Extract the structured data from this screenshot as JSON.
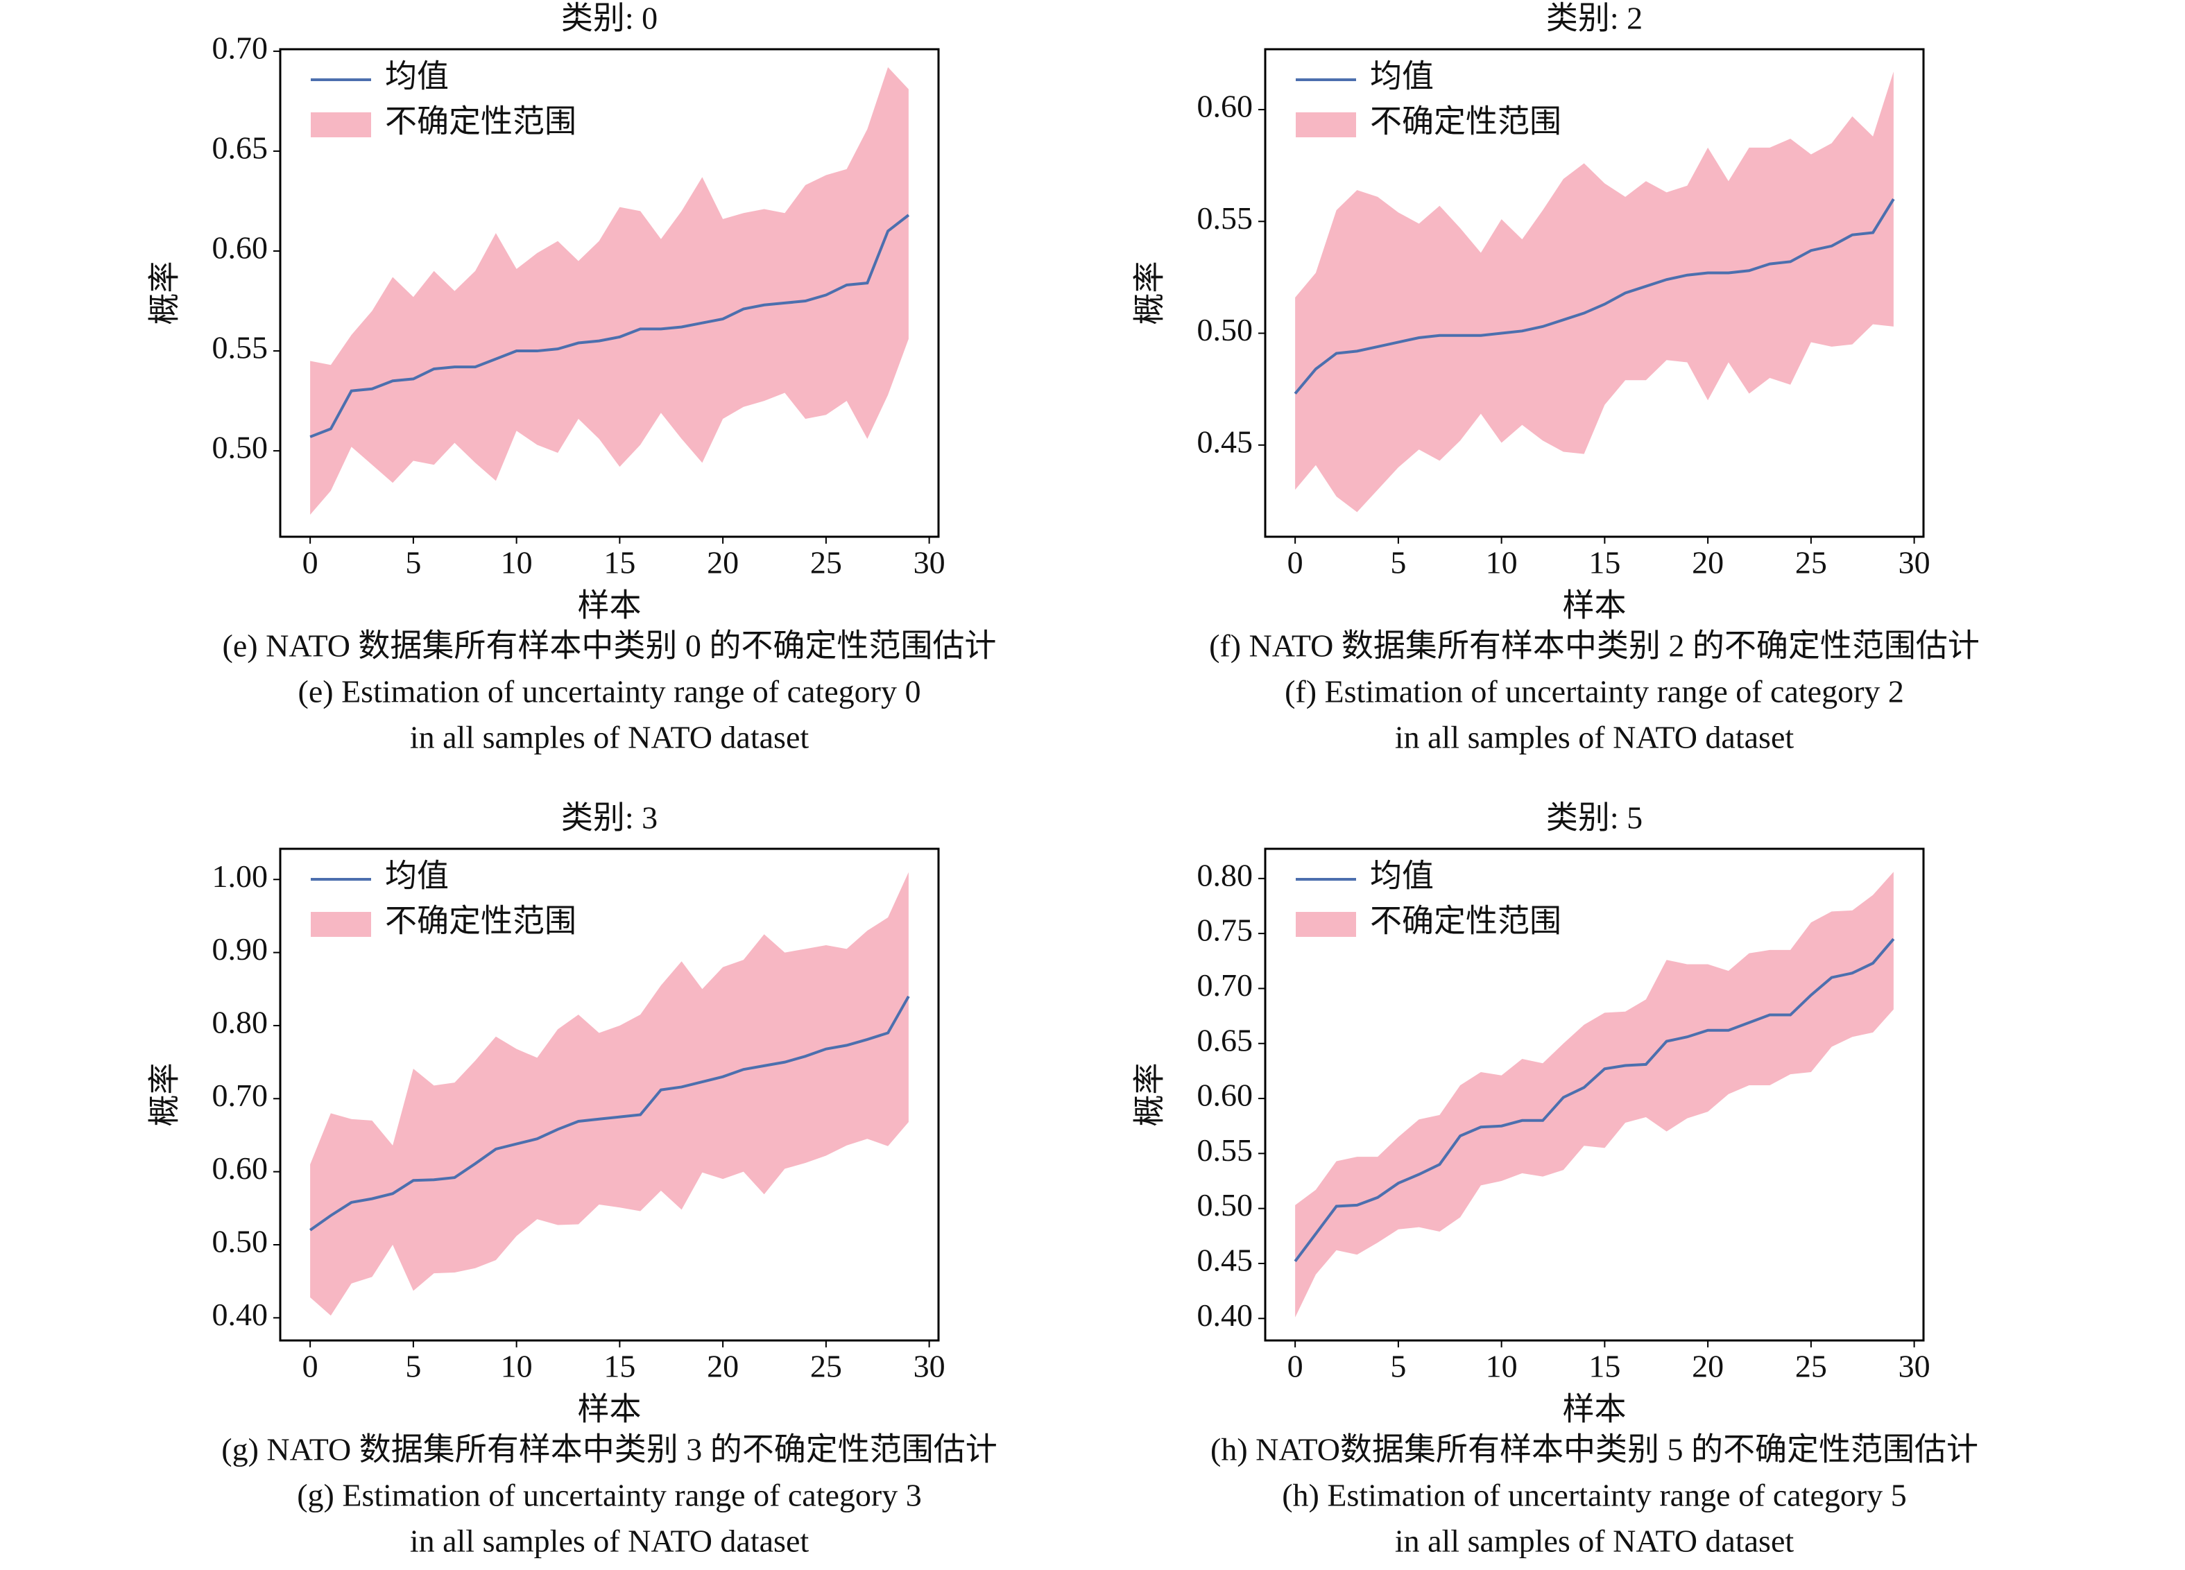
{
  "chart_data": [
    {
      "type": "line",
      "title": "类别: 0",
      "xlabel": "样本",
      "ylabel": "概率",
      "x": [
        0,
        1,
        2,
        3,
        4,
        5,
        6,
        7,
        8,
        9,
        10,
        11,
        12,
        13,
        14,
        15,
        16,
        17,
        18,
        19,
        20,
        21,
        22,
        23,
        24,
        25,
        26,
        27,
        28,
        29
      ],
      "series": [
        {
          "name": "均值",
          "color": "#4c6fae",
          "values": [
            0.507,
            0.511,
            0.53,
            0.531,
            0.535,
            0.536,
            0.541,
            0.542,
            0.542,
            0.546,
            0.55,
            0.55,
            0.551,
            0.554,
            0.555,
            0.557,
            0.561,
            0.561,
            0.562,
            0.564,
            0.566,
            0.571,
            0.573,
            0.574,
            0.575,
            0.578,
            0.583,
            0.584,
            0.61,
            0.618
          ]
        }
      ],
      "band": {
        "name": "不确定性范围",
        "color": "#f7b7c3",
        "upper": [
          0.545,
          0.543,
          0.558,
          0.57,
          0.587,
          0.577,
          0.59,
          0.58,
          0.59,
          0.609,
          0.591,
          0.599,
          0.605,
          0.595,
          0.605,
          0.622,
          0.62,
          0.606,
          0.62,
          0.637,
          0.616,
          0.619,
          0.621,
          0.619,
          0.633,
          0.638,
          0.641,
          0.661,
          0.692,
          0.681
        ],
        "lower": [
          0.468,
          0.48,
          0.502,
          0.493,
          0.484,
          0.495,
          0.493,
          0.504,
          0.494,
          0.485,
          0.51,
          0.503,
          0.499,
          0.516,
          0.506,
          0.492,
          0.503,
          0.519,
          0.506,
          0.494,
          0.516,
          0.522,
          0.525,
          0.529,
          0.516,
          0.518,
          0.525,
          0.506,
          0.528,
          0.556
        ]
      },
      "xlim": [
        -1.45,
        30.45
      ],
      "xticks": [
        0,
        5,
        10,
        15,
        20,
        25,
        30
      ],
      "ylim": [
        0.457,
        0.701
      ],
      "yticks": [
        {
          "value": 0.5,
          "label": "0.50"
        },
        {
          "value": 0.55,
          "label": "0.55"
        },
        {
          "value": 0.6,
          "label": "0.60"
        },
        {
          "value": 0.65,
          "label": "0.65"
        },
        {
          "value": 0.7,
          "label": "0.70"
        }
      ],
      "legend": "upper left",
      "caption": [
        "(e) NATO 数据集所有样本中类别 0 的不确定性范围估计",
        "(e) Estimation of uncertainty range of category 0",
        "in all samples of NATO dataset"
      ]
    },
    {
      "type": "line",
      "title": "类别: 2",
      "xlabel": "样本",
      "ylabel": "概率",
      "x": [
        0,
        1,
        2,
        3,
        4,
        5,
        6,
        7,
        8,
        9,
        10,
        11,
        12,
        13,
        14,
        15,
        16,
        17,
        18,
        19,
        20,
        21,
        22,
        23,
        24,
        25,
        26,
        27,
        28,
        29
      ],
      "series": [
        {
          "name": "均值",
          "color": "#4c6fae",
          "values": [
            0.473,
            0.484,
            0.491,
            0.492,
            0.494,
            0.496,
            0.498,
            0.499,
            0.499,
            0.499,
            0.5,
            0.501,
            0.503,
            0.506,
            0.509,
            0.513,
            0.518,
            0.521,
            0.524,
            0.526,
            0.527,
            0.527,
            0.528,
            0.531,
            0.532,
            0.537,
            0.539,
            0.544,
            0.545,
            0.56
          ]
        }
      ],
      "band": {
        "name": "不确定性范围",
        "color": "#f7b7c3",
        "upper": [
          0.516,
          0.527,
          0.555,
          0.564,
          0.561,
          0.554,
          0.549,
          0.557,
          0.547,
          0.536,
          0.551,
          0.542,
          0.555,
          0.569,
          0.576,
          0.567,
          0.561,
          0.568,
          0.563,
          0.566,
          0.583,
          0.568,
          0.583,
          0.583,
          0.587,
          0.58,
          0.585,
          0.597,
          0.588,
          0.617
        ],
        "lower": [
          0.43,
          0.441,
          0.427,
          0.42,
          0.43,
          0.44,
          0.448,
          0.443,
          0.452,
          0.464,
          0.451,
          0.459,
          0.452,
          0.447,
          0.446,
          0.468,
          0.479,
          0.479,
          0.488,
          0.487,
          0.47,
          0.487,
          0.473,
          0.48,
          0.477,
          0.496,
          0.494,
          0.495,
          0.504,
          0.503
        ]
      },
      "xlim": [
        -1.45,
        30.45
      ],
      "xticks": [
        0,
        5,
        10,
        15,
        20,
        25,
        30
      ],
      "ylim": [
        0.409,
        0.627
      ],
      "yticks": [
        {
          "value": 0.45,
          "label": "0.45"
        },
        {
          "value": 0.5,
          "label": "0.50"
        },
        {
          "value": 0.55,
          "label": "0.55"
        },
        {
          "value": 0.6,
          "label": "0.60"
        }
      ],
      "legend": "upper left",
      "caption": [
        "(f) NATO 数据集所有样本中类别 2 的不确定性范围估计",
        "(f) Estimation of uncertainty range of category 2",
        "in all samples of NATO dataset"
      ]
    },
    {
      "type": "line",
      "title": "类别: 3",
      "xlabel": "样本",
      "ylabel": "概率",
      "x": [
        0,
        1,
        2,
        3,
        4,
        5,
        6,
        7,
        8,
        9,
        10,
        11,
        12,
        13,
        14,
        15,
        16,
        17,
        18,
        19,
        20,
        21,
        22,
        23,
        24,
        25,
        26,
        27,
        28,
        29
      ],
      "series": [
        {
          "name": "均值",
          "color": "#4c6fae",
          "values": [
            0.52,
            0.54,
            0.558,
            0.563,
            0.57,
            0.588,
            0.589,
            0.592,
            0.611,
            0.631,
            0.638,
            0.645,
            0.658,
            0.669,
            0.672,
            0.675,
            0.678,
            0.712,
            0.716,
            0.723,
            0.73,
            0.74,
            0.745,
            0.75,
            0.758,
            0.768,
            0.773,
            0.781,
            0.79,
            0.84
          ]
        }
      ],
      "band": {
        "name": "不确定性范围",
        "color": "#f7b7c3",
        "upper": [
          0.61,
          0.68,
          0.672,
          0.67,
          0.636,
          0.741,
          0.718,
          0.722,
          0.752,
          0.785,
          0.768,
          0.756,
          0.795,
          0.815,
          0.79,
          0.8,
          0.815,
          0.855,
          0.888,
          0.85,
          0.88,
          0.89,
          0.925,
          0.9,
          0.905,
          0.91,
          0.905,
          0.93,
          0.948,
          1.01
        ],
        "lower": [
          0.428,
          0.403,
          0.447,
          0.456,
          0.5,
          0.437,
          0.461,
          0.462,
          0.468,
          0.479,
          0.512,
          0.535,
          0.527,
          0.528,
          0.555,
          0.551,
          0.546,
          0.574,
          0.548,
          0.599,
          0.59,
          0.6,
          0.569,
          0.604,
          0.612,
          0.622,
          0.636,
          0.645,
          0.635,
          0.668
        ]
      },
      "xlim": [
        -1.45,
        30.45
      ],
      "xticks": [
        0,
        5,
        10,
        15,
        20,
        25,
        30
      ],
      "ylim": [
        0.369,
        1.042
      ],
      "yticks": [
        {
          "value": 0.4,
          "label": "0.40"
        },
        {
          "value": 0.5,
          "label": "0.50"
        },
        {
          "value": 0.6,
          "label": "0.60"
        },
        {
          "value": 0.7,
          "label": "0.70"
        },
        {
          "value": 0.8,
          "label": "0.80"
        },
        {
          "value": 0.9,
          "label": "0.90"
        },
        {
          "value": 1.0,
          "label": "1.00"
        }
      ],
      "legend": "upper left",
      "caption": [
        "(g) NATO 数据集所有样本中类别 3 的不确定性范围估计",
        "(g) Estimation of uncertainty range of category 3",
        "in all samples of NATO dataset"
      ]
    },
    {
      "type": "line",
      "title": "类别: 5",
      "xlabel": "样本",
      "ylabel": "概率",
      "x": [
        0,
        1,
        2,
        3,
        4,
        5,
        6,
        7,
        8,
        9,
        10,
        11,
        12,
        13,
        14,
        15,
        16,
        17,
        18,
        19,
        20,
        21,
        22,
        23,
        24,
        25,
        26,
        27,
        28,
        29
      ],
      "series": [
        {
          "name": "均值",
          "color": "#4c6fae",
          "values": [
            0.452,
            0.477,
            0.502,
            0.503,
            0.51,
            0.523,
            0.531,
            0.54,
            0.566,
            0.574,
            0.575,
            0.58,
            0.58,
            0.601,
            0.61,
            0.627,
            0.63,
            0.631,
            0.652,
            0.656,
            0.662,
            0.662,
            0.669,
            0.676,
            0.676,
            0.694,
            0.71,
            0.714,
            0.723,
            0.745
          ]
        }
      ],
      "band": {
        "name": "不确定性范围",
        "color": "#f7b7c3",
        "upper": [
          0.503,
          0.517,
          0.543,
          0.547,
          0.547,
          0.565,
          0.581,
          0.585,
          0.612,
          0.624,
          0.621,
          0.636,
          0.632,
          0.65,
          0.667,
          0.678,
          0.679,
          0.69,
          0.726,
          0.722,
          0.722,
          0.716,
          0.732,
          0.735,
          0.735,
          0.76,
          0.77,
          0.771,
          0.785,
          0.806
        ],
        "lower": [
          0.401,
          0.44,
          0.462,
          0.458,
          0.469,
          0.481,
          0.483,
          0.479,
          0.492,
          0.521,
          0.525,
          0.532,
          0.529,
          0.535,
          0.557,
          0.555,
          0.578,
          0.583,
          0.57,
          0.582,
          0.588,
          0.604,
          0.612,
          0.612,
          0.622,
          0.624,
          0.647,
          0.656,
          0.66,
          0.681
        ]
      },
      "xlim": [
        -1.45,
        30.45
      ],
      "xticks": [
        0,
        5,
        10,
        15,
        20,
        25,
        30
      ],
      "ylim": [
        0.38,
        0.827
      ],
      "yticks": [
        {
          "value": 0.4,
          "label": "0.40"
        },
        {
          "value": 0.45,
          "label": "0.45"
        },
        {
          "value": 0.5,
          "label": "0.50"
        },
        {
          "value": 0.55,
          "label": "0.55"
        },
        {
          "value": 0.6,
          "label": "0.60"
        },
        {
          "value": 0.65,
          "label": "0.65"
        },
        {
          "value": 0.7,
          "label": "0.70"
        },
        {
          "value": 0.75,
          "label": "0.75"
        },
        {
          "value": 0.8,
          "label": "0.80"
        }
      ],
      "legend": "upper left",
      "caption": [
        "(h) NATO数据集所有样本中类别 5 的不确定性范围估计",
        "(h) Estimation of uncertainty range of category 5",
        "in all samples of NATO dataset"
      ]
    }
  ]
}
